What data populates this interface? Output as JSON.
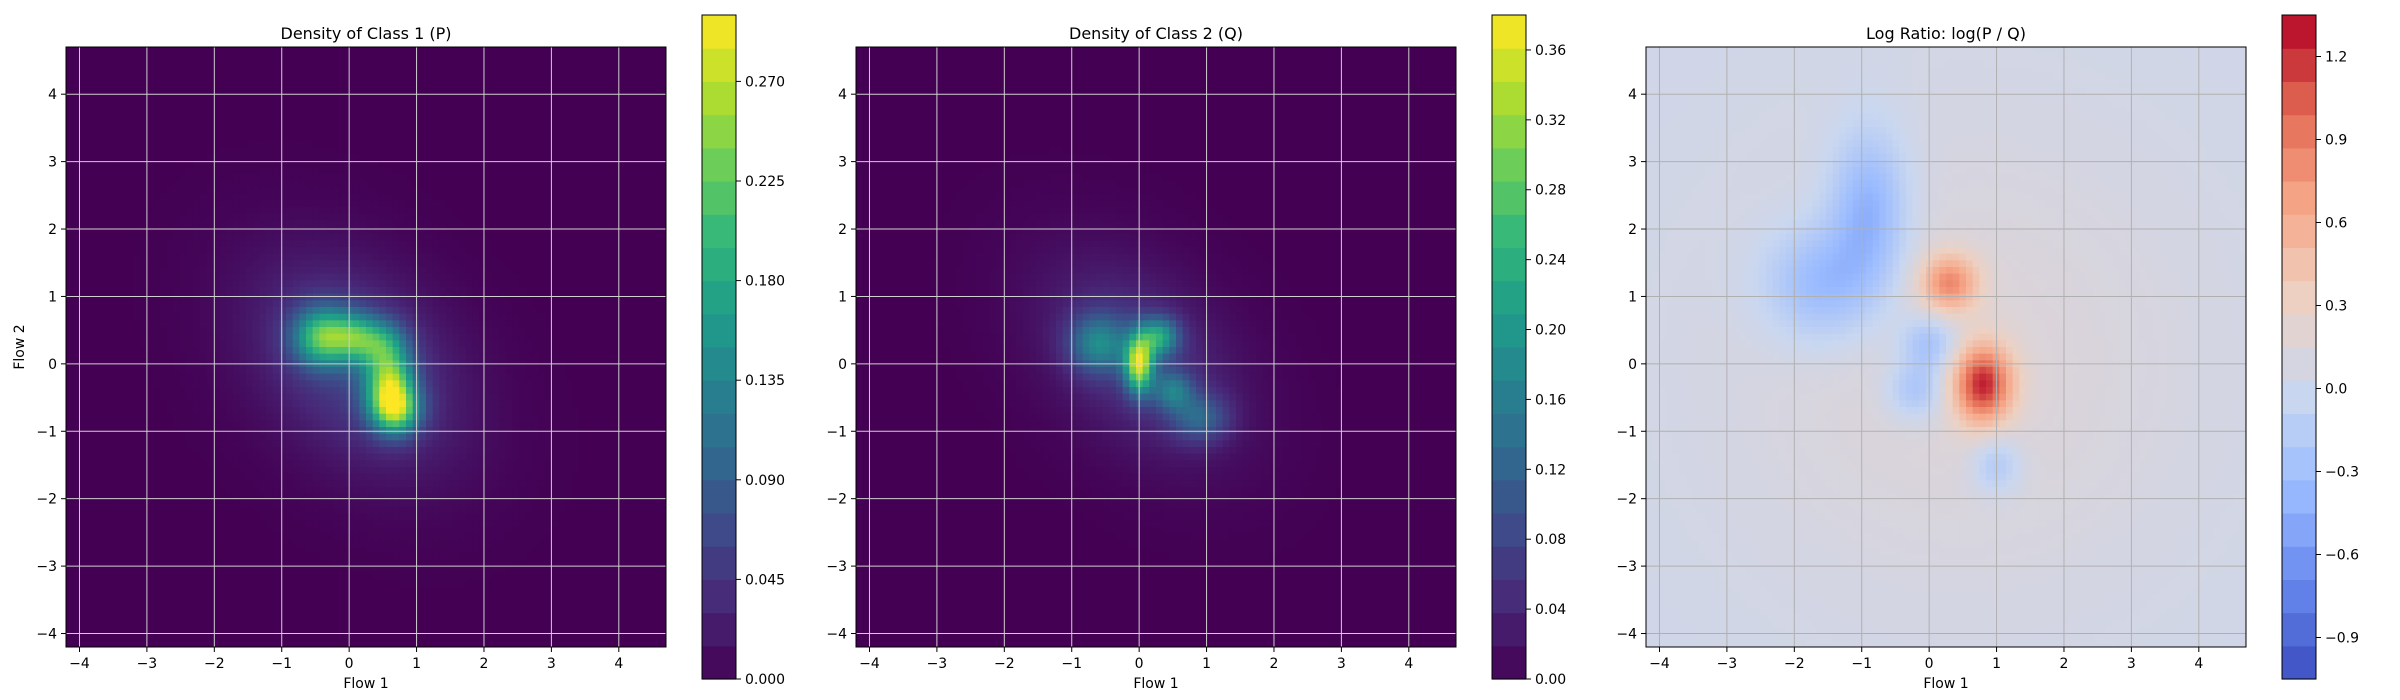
{
  "chart_data": [
    {
      "type": "heatmap",
      "title": "Density of Class 1 (P)",
      "xlabel": "Flow 1",
      "ylabel": "Flow 2",
      "xlim": [
        -4.2,
        4.7
      ],
      "ylim": [
        -4.2,
        4.7
      ],
      "xticks": [
        -4,
        -3,
        -2,
        -1,
        0,
        1,
        2,
        3,
        4
      ],
      "yticks": [
        -4,
        -3,
        -2,
        -1,
        0,
        1,
        2,
        3,
        4
      ],
      "grid": true,
      "colormap": "viridis",
      "colorbar": {
        "range": [
          0.0,
          0.3
        ],
        "ticks": [
          0.0,
          0.045,
          0.09,
          0.135,
          0.18,
          0.225,
          0.27
        ],
        "tick_labels": [
          "0.000",
          "0.045",
          "0.090",
          "0.135",
          "0.180",
          "0.225",
          "0.270"
        ]
      },
      "background_color": "#440154",
      "blobs": [
        {
          "x": 0.1,
          "y": 0.0,
          "sx": 1.05,
          "sy": 1.05,
          "rho": -0.35,
          "amp": 0.06
        },
        {
          "x": -0.4,
          "y": 0.4,
          "sx": 0.3,
          "sy": 0.3,
          "rho": 0.0,
          "amp": 0.18
        },
        {
          "x": 0.6,
          "y": -0.3,
          "sx": 0.25,
          "sy": 0.35,
          "rho": 0.0,
          "amp": 0.2
        },
        {
          "x": 0.7,
          "y": -0.7,
          "sx": 0.25,
          "sy": 0.25,
          "rho": 0.0,
          "amp": 0.17
        },
        {
          "x": 0.1,
          "y": 0.4,
          "sx": 0.25,
          "sy": 0.25,
          "rho": 0.0,
          "amp": 0.12
        },
        {
          "x": 0.5,
          "y": 0.3,
          "sx": 0.25,
          "sy": 0.25,
          "rho": 0.0,
          "amp": 0.1
        }
      ]
    },
    {
      "type": "heatmap",
      "title": "Density of Class 2 (Q)",
      "xlabel": "Flow 1",
      "ylabel": "",
      "xlim": [
        -4.2,
        4.7
      ],
      "ylim": [
        -4.2,
        4.7
      ],
      "xticks": [
        -4,
        -3,
        -2,
        -1,
        0,
        1,
        2,
        3,
        4
      ],
      "yticks": [
        -4,
        -3,
        -2,
        -1,
        0,
        1,
        2,
        3,
        4
      ],
      "grid": true,
      "colormap": "viridis",
      "colorbar": {
        "range": [
          0.0,
          0.38
        ],
        "ticks": [
          0.0,
          0.04,
          0.08,
          0.12,
          0.16,
          0.2,
          0.24,
          0.28,
          0.32,
          0.36
        ],
        "tick_labels": [
          "0.00",
          "0.04",
          "0.08",
          "0.12",
          "0.16",
          "0.20",
          "0.24",
          "0.28",
          "0.32",
          "0.36"
        ]
      },
      "background_color": "#440154",
      "blobs": [
        {
          "x": 0.0,
          "y": 0.1,
          "sx": 1.0,
          "sy": 1.0,
          "rho": -0.4,
          "amp": 0.06
        },
        {
          "x": 0.0,
          "y": 0.0,
          "sx": 0.15,
          "sy": 0.3,
          "rho": 0.0,
          "amp": 0.3
        },
        {
          "x": 0.3,
          "y": 0.4,
          "sx": 0.2,
          "sy": 0.2,
          "rho": 0.0,
          "amp": 0.18
        },
        {
          "x": -0.6,
          "y": 0.3,
          "sx": 0.3,
          "sy": 0.3,
          "rho": 0.0,
          "amp": 0.14
        },
        {
          "x": 0.9,
          "y": -0.8,
          "sx": 0.3,
          "sy": 0.25,
          "rho": 0.0,
          "amp": 0.1
        },
        {
          "x": 0.5,
          "y": -0.4,
          "sx": 0.2,
          "sy": 0.2,
          "rho": 0.0,
          "amp": 0.12
        }
      ]
    },
    {
      "type": "heatmap",
      "title": "Log Ratio: log(P / Q)",
      "xlabel": "Flow 1",
      "ylabel": "",
      "xlim": [
        -4.2,
        4.7
      ],
      "ylim": [
        -4.2,
        4.7
      ],
      "xticks": [
        -4,
        -3,
        -2,
        -1,
        0,
        1,
        2,
        3,
        4
      ],
      "yticks": [
        -4,
        -3,
        -2,
        -1,
        0,
        1,
        2,
        3,
        4
      ],
      "grid": true,
      "colormap": "coolwarm",
      "colorbar": {
        "range": [
          -1.05,
          1.35
        ],
        "ticks": [
          -0.9,
          -0.6,
          -0.3,
          0.0,
          0.3,
          0.6,
          0.9,
          1.2
        ],
        "tick_labels": [
          "−0.9",
          "−0.6",
          "−0.3",
          "0.0",
          "0.3",
          "0.6",
          "0.9",
          "1.2"
        ]
      },
      "background_color": "#ebd4c8",
      "blobs": [
        {
          "x": 0.8,
          "y": -0.3,
          "sx": 0.3,
          "sy": 0.4,
          "rho": 0.0,
          "amp": 1.1
        },
        {
          "x": 0.3,
          "y": 1.2,
          "sx": 0.3,
          "sy": 0.3,
          "rho": 0.0,
          "amp": 0.7
        },
        {
          "x": -1.6,
          "y": 1.2,
          "sx": 0.6,
          "sy": 0.6,
          "rho": 0.0,
          "amp": -0.45
        },
        {
          "x": -0.9,
          "y": 2.3,
          "sx": 0.4,
          "sy": 0.8,
          "rho": 0.0,
          "amp": -0.5
        },
        {
          "x": 0.0,
          "y": 0.3,
          "sx": 0.3,
          "sy": 0.3,
          "rho": 0.0,
          "amp": -0.4
        },
        {
          "x": -0.2,
          "y": -0.4,
          "sx": 0.3,
          "sy": 0.3,
          "rho": 0.0,
          "amp": -0.35
        },
        {
          "x": 1.0,
          "y": -1.5,
          "sx": 0.25,
          "sy": 0.3,
          "rho": 0.0,
          "amp": -0.3
        },
        {
          "x": 0.5,
          "y": 0.0,
          "sx": 2.5,
          "sy": 2.5,
          "rho": 0.0,
          "amp": 0.12
        }
      ]
    }
  ]
}
